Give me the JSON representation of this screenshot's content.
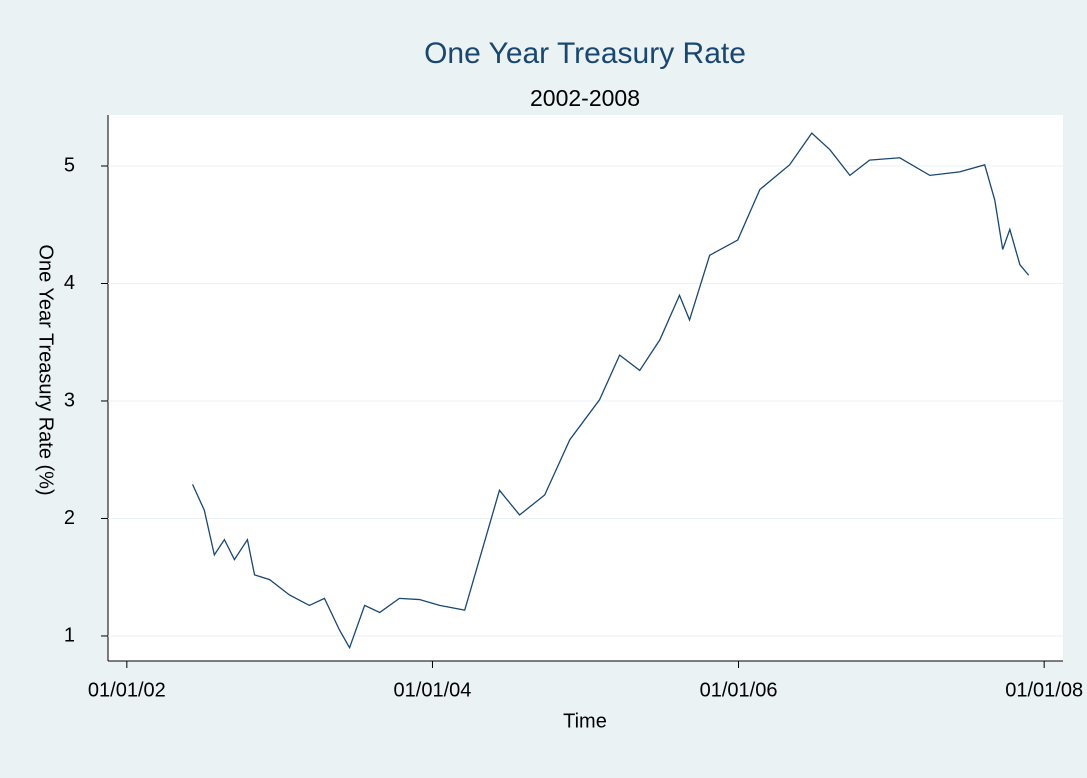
{
  "chart_data": {
    "type": "line",
    "title": "One Year Treasury Rate",
    "subtitle": "2002-2008",
    "x_label": "Time",
    "y_label": "One Year Treasury Rate (%)",
    "x": [
      "2002-06-07",
      "2002-07-05",
      "2002-07-29",
      "2002-08-22",
      "2002-09-15",
      "2002-10-16",
      "2002-11-02",
      "2002-12-08",
      "2003-01-24",
      "2003-03-13",
      "2003-04-18",
      "2003-05-24",
      "2003-06-17",
      "2003-07-23",
      "2003-08-28",
      "2003-10-14",
      "2003-12-01",
      "2004-01-18",
      "2004-03-18",
      "2004-04-22",
      "2004-06-09",
      "2004-07-27",
      "2004-09-25",
      "2004-11-24",
      "2005-02-03",
      "2005-03-23",
      "2005-05-10",
      "2005-06-27",
      "2005-08-13",
      "2005-09-06",
      "2005-10-24",
      "2005-12-30",
      "2006-02-21",
      "2006-05-03",
      "2006-06-25",
      "2006-08-07",
      "2006-09-24",
      "2006-11-10",
      "2007-01-21",
      "2007-04-03",
      "2007-06-13",
      "2007-08-12",
      "2007-09-05",
      "2007-09-24",
      "2007-10-11",
      "2007-11-04",
      "2007-11-25"
    ],
    "series": [
      {
        "name": "One Year Treasury Rate",
        "color": "#1a476f",
        "values": [
          2.29,
          2.07,
          1.69,
          1.82,
          1.65,
          1.82,
          1.52,
          1.48,
          1.35,
          1.26,
          1.32,
          1.05,
          0.9,
          1.26,
          1.2,
          1.32,
          1.31,
          1.26,
          1.22,
          1.65,
          2.24,
          2.03,
          2.2,
          2.67,
          3.01,
          3.39,
          3.26,
          3.52,
          3.9,
          3.69,
          4.24,
          4.37,
          4.8,
          5.01,
          5.28,
          5.14,
          4.92,
          5.05,
          5.07,
          4.92,
          4.95,
          5.01,
          4.71,
          4.29,
          4.46,
          4.16,
          4.07
        ]
      }
    ],
    "xlim": [
      "2001-11-17",
      "2008-02-15"
    ],
    "xticks": [
      {
        "value": "2002-01-01",
        "label": "01/01/02"
      },
      {
        "value": "2004-01-01",
        "label": "01/01/04"
      },
      {
        "value": "2006-01-01",
        "label": "01/01/06"
      },
      {
        "value": "2008-01-01",
        "label": "01/01/08"
      }
    ],
    "ylim": [
      0.787,
      5.434
    ],
    "yticks": [
      1,
      2,
      3,
      4,
      5
    ],
    "grid": true
  }
}
